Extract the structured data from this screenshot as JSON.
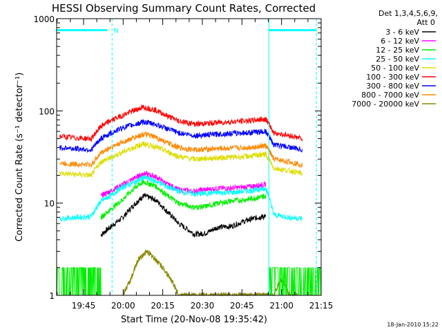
{
  "chart_data": {
    "type": "line",
    "title": "HESSI Observing Summary Count Rates, Corrected",
    "xlabel": "Start Time (20-Nov-08 19:35:42)",
    "ylabel": "Corrected Count Rate (s⁻¹ detector⁻¹)",
    "yscale": "log",
    "ylim": [
      1,
      1000
    ],
    "xlim_minutes": [
      19.58,
      21.25
    ],
    "x_unit": "time of day (decimal hours UT)",
    "x_ticks": [
      {
        "label": "19:45",
        "value": 19.75
      },
      {
        "label": "20:00",
        "value": 20.0
      },
      {
        "label": "20:15",
        "value": 20.25
      },
      {
        "label": "20:30",
        "value": 20.5
      },
      {
        "label": "20:45",
        "value": 20.75
      },
      {
        "label": "21:00",
        "value": 21.0
      },
      {
        "label": "21:15",
        "value": 21.25
      }
    ],
    "y_ticks": [
      {
        "label": "1",
        "value": 1
      },
      {
        "label": "10",
        "value": 10
      },
      {
        "label": "100",
        "value": 100
      },
      {
        "label": "1000",
        "value": 1000
      }
    ],
    "legend_header": [
      "Det 1,3,4,5,6,9,",
      "Att 0"
    ],
    "legend_placement": "right",
    "series": [
      {
        "name": "3 - 6 keV",
        "color": "#000000",
        "x": [
          19.86,
          19.92,
          20.0,
          20.08,
          20.13,
          20.2,
          20.28,
          20.35,
          20.45,
          20.52,
          20.6,
          20.68,
          20.78,
          20.85,
          20.9
        ],
        "y": [
          4.5,
          5.5,
          7.0,
          10.0,
          12.0,
          11.0,
          8.0,
          6.0,
          4.6,
          4.7,
          5.5,
          5.6,
          6.5,
          7.0,
          7.2
        ]
      },
      {
        "name": "6 - 12 keV",
        "color": "#ff00ff",
        "x": [
          19.86,
          19.92,
          20.0,
          20.08,
          20.13,
          20.2,
          20.28,
          20.35,
          20.45,
          20.52,
          20.6,
          20.68,
          20.78,
          20.85,
          20.9
        ],
        "y": [
          12.0,
          13.5,
          16.0,
          19.0,
          21.0,
          19.5,
          16.0,
          14.0,
          13.5,
          14.0,
          14.5,
          14.5,
          15.0,
          15.5,
          16.0
        ]
      },
      {
        "name": "12 - 25 keV",
        "color": "#00ee00",
        "x": [
          19.86,
          19.92,
          20.0,
          20.08,
          20.13,
          20.2,
          20.28,
          20.35,
          20.45,
          20.52,
          20.6,
          20.68,
          20.78,
          20.85,
          20.9
        ],
        "y": [
          7.0,
          8.5,
          11.0,
          15.0,
          17.0,
          15.5,
          12.0,
          10.0,
          9.0,
          9.2,
          10.0,
          10.5,
          11.0,
          11.5,
          12.0
        ]
      },
      {
        "name": "25 - 50 keV",
        "color": "#00ffff",
        "x": [
          19.6,
          19.7,
          19.8,
          19.86,
          19.92,
          20.0,
          20.08,
          20.13,
          20.2,
          20.28,
          20.35,
          20.45,
          20.52,
          20.6,
          20.68,
          20.78,
          20.85,
          20.9,
          20.95,
          21.05,
          21.13
        ],
        "y": [
          6.8,
          7.0,
          7.2,
          10.5,
          12.0,
          15.0,
          17.0,
          19.0,
          17.5,
          15.0,
          13.5,
          12.5,
          12.8,
          13.0,
          13.0,
          13.5,
          14.0,
          14.5,
          7.5,
          7.0,
          6.8
        ]
      },
      {
        "name": "50 - 100 keV",
        "color": "#dddd00",
        "x": [
          19.6,
          19.7,
          19.8,
          19.86,
          19.92,
          20.0,
          20.08,
          20.13,
          20.2,
          20.28,
          20.35,
          20.45,
          20.52,
          20.6,
          20.68,
          20.78,
          20.85,
          20.9,
          20.95,
          21.05,
          21.13
        ],
        "y": [
          21.0,
          20.5,
          20.0,
          28.0,
          31.0,
          36.0,
          41.0,
          44.0,
          41.0,
          36.0,
          32.0,
          30.0,
          30.5,
          31.0,
          31.5,
          32.0,
          33.0,
          34.0,
          24.0,
          22.5,
          21.0
        ]
      },
      {
        "name": "100 - 300 keV",
        "color": "#ff0000",
        "x": [
          19.6,
          19.7,
          19.8,
          19.86,
          19.92,
          20.0,
          20.08,
          20.13,
          20.2,
          20.28,
          20.35,
          20.45,
          20.52,
          20.6,
          20.68,
          20.78,
          20.85,
          20.9,
          20.95,
          21.05,
          21.13
        ],
        "y": [
          53.0,
          51.0,
          50.0,
          68.0,
          78.0,
          90.0,
          103.0,
          110.0,
          103.0,
          88.0,
          78.0,
          72.0,
          73.0,
          75.0,
          76.0,
          78.0,
          80.0,
          82.0,
          58.0,
          54.0,
          50.0
        ]
      },
      {
        "name": "300 - 800 keV",
        "color": "#0000ff",
        "x": [
          19.6,
          19.7,
          19.8,
          19.86,
          19.92,
          20.0,
          20.08,
          20.13,
          20.2,
          20.28,
          20.35,
          20.45,
          20.52,
          20.6,
          20.68,
          20.78,
          20.85,
          20.9,
          20.95,
          21.05,
          21.13
        ],
        "y": [
          40.0,
          39.0,
          38.0,
          50.0,
          57.0,
          66.0,
          72.0,
          76.0,
          72.0,
          64.0,
          58.0,
          54.0,
          55.0,
          56.0,
          57.0,
          58.0,
          59.0,
          60.0,
          43.0,
          40.5,
          38.0
        ]
      },
      {
        "name": "800 - 7000 keV",
        "color": "#ff8800",
        "x": [
          19.6,
          19.7,
          19.8,
          19.86,
          19.92,
          20.0,
          20.08,
          20.13,
          20.2,
          20.28,
          20.35,
          20.45,
          20.52,
          20.6,
          20.68,
          20.78,
          20.85,
          20.9,
          20.95,
          21.05,
          21.13
        ],
        "y": [
          27.0,
          26.5,
          26.0,
          35.0,
          40.0,
          46.0,
          52.0,
          56.0,
          52.0,
          45.0,
          40.0,
          38.0,
          38.5,
          39.0,
          39.5,
          40.0,
          41.0,
          42.0,
          30.0,
          28.0,
          26.0
        ]
      },
      {
        "name": "7000 - 20000 keV",
        "color": "#888800",
        "x": [
          20.0,
          20.05,
          20.1,
          20.15,
          20.2,
          20.25,
          20.3,
          20.35,
          20.4,
          20.45,
          20.5,
          20.55,
          20.6,
          20.65,
          20.7,
          20.75,
          20.8,
          20.85,
          20.9,
          20.95,
          21.0,
          21.05,
          21.1
        ],
        "y": [
          1.0,
          1.5,
          2.5,
          3.0,
          2.5,
          2.0,
          1.5,
          1.0,
          1.0,
          1.0,
          1.0,
          1.0,
          1.0,
          1.0,
          1.0,
          1.0,
          1.0,
          1.0,
          1.0,
          1.0,
          1.5,
          1.0,
          1.0
        ]
      }
    ],
    "extra_traces": [
      {
        "description": "green noise floor before and after main interval",
        "color": "#00ee00",
        "ranges_hours": [
          [
            19.58,
            19.86
          ],
          [
            20.92,
            21.25
          ]
        ],
        "y_values": [
          1,
          2
        ]
      }
    ],
    "annotations": [
      {
        "label": "N",
        "color": "#00ffff",
        "x_hour": 19.93
      }
    ],
    "overlay_lines": {
      "color": "#00ffff",
      "top_bars": [
        [
          19.58,
          19.9
        ],
        [
          20.92,
          21.22
        ]
      ],
      "top_bar_y": 750,
      "vertical_dashed": [
        19.93,
        21.22
      ],
      "vertical_solid": [
        20.92
      ]
    }
  },
  "timestamp": "18-Jan-2010 15:22"
}
